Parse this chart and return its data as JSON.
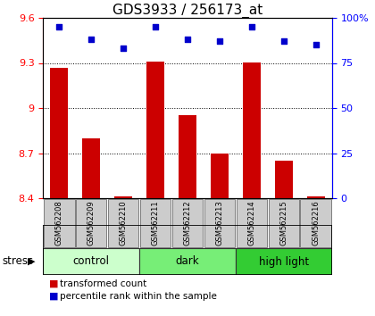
{
  "title": "GDS3933 / 256173_at",
  "samples": [
    "GSM562208",
    "GSM562209",
    "GSM562210",
    "GSM562211",
    "GSM562212",
    "GSM562213",
    "GSM562214",
    "GSM562215",
    "GSM562216"
  ],
  "transformed_count": [
    9.27,
    8.8,
    8.41,
    9.31,
    8.95,
    8.7,
    9.3,
    8.65,
    8.41
  ],
  "percentile_rank": [
    95,
    88,
    83,
    95,
    88,
    87,
    95,
    87,
    85
  ],
  "ylim_left": [
    8.4,
    9.6
  ],
  "ylim_right": [
    0,
    100
  ],
  "yticks_left": [
    8.4,
    8.7,
    9.0,
    9.3,
    9.6
  ],
  "yticks_right": [
    0,
    25,
    50,
    75,
    100
  ],
  "ytick_labels_left": [
    "8.4",
    "8.7",
    "9",
    "9.3",
    "9.6"
  ],
  "ytick_labels_right": [
    "0",
    "25",
    "50",
    "75",
    "100%"
  ],
  "hgrid_ticks": [
    8.7,
    9.0,
    9.3
  ],
  "bar_color": "#cc0000",
  "dot_color": "#0000cc",
  "groups": [
    {
      "label": "control",
      "indices": [
        0,
        1,
        2
      ],
      "color": "#ccffcc"
    },
    {
      "label": "dark",
      "indices": [
        3,
        4,
        5
      ],
      "color": "#77ee77"
    },
    {
      "label": "high light",
      "indices": [
        6,
        7,
        8
      ],
      "color": "#33cc33"
    }
  ],
  "stress_label": "stress",
  "legend_bar_label": "transformed count",
  "legend_dot_label": "percentile rank within the sample",
  "title_fontsize": 11,
  "tick_fontsize": 8,
  "sample_fontsize": 6,
  "group_fontsize": 8.5
}
